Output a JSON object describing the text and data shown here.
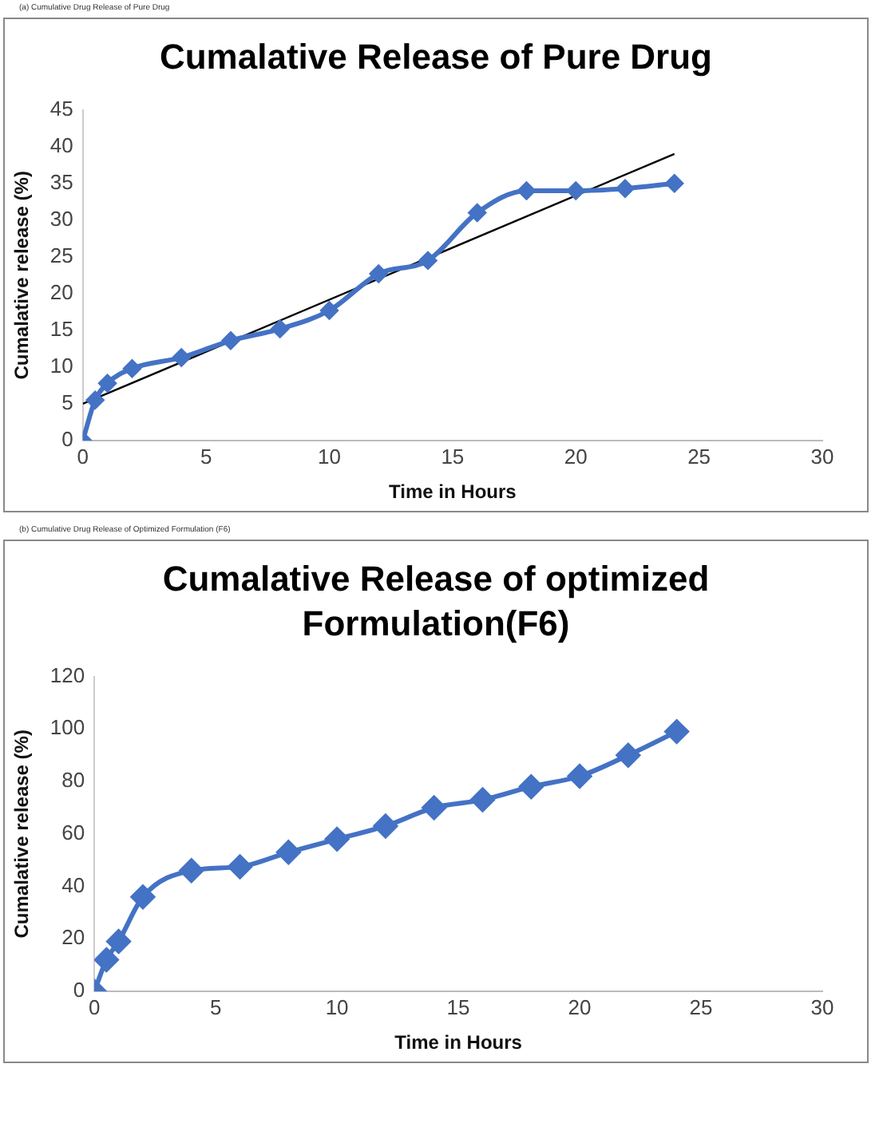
{
  "chart_data": [
    {
      "type": "line",
      "title": "Cumalative Release of Pure Drug",
      "annotations": [
        "(a) Cumulative Drug Release of Pure Drug"
      ],
      "xlabel": "Time in Hours",
      "ylabel": "Cumalative release (%)",
      "x": [
        0,
        0.5,
        1,
        2,
        4,
        6,
        8,
        10,
        12,
        14,
        16,
        18,
        20,
        22,
        24
      ],
      "xlim": [
        0,
        30
      ],
      "xticks": [
        0,
        5,
        10,
        15,
        20,
        25,
        30
      ],
      "ylim": [
        0,
        45
      ],
      "yticks": [
        0,
        5,
        10,
        15,
        20,
        25,
        30,
        35,
        40,
        45
      ],
      "grid": false,
      "legend": false,
      "marker": "diamond",
      "series": [
        {
          "color": "#4472c4",
          "values": [
            0,
            5.5,
            7.8,
            9.8,
            11.3,
            13.6,
            15.2,
            17.7,
            22.7,
            24.5,
            31,
            34,
            34,
            34.3,
            35
          ]
        },
        {
          "type": "line",
          "x": [
            0,
            24
          ],
          "color": "#000000",
          "marker": "none",
          "values": [
            5,
            39
          ]
        }
      ]
    },
    {
      "type": "line",
      "title": "Cumalative Release of optimized Formulation(F6)",
      "annotations": [
        "(b) Cumulative Drug Release of Optimized Formulation (F6)"
      ],
      "xlabel": "Time in Hours",
      "ylabel": "Cumalative release (%)",
      "x": [
        0,
        0.5,
        1,
        2,
        4,
        6,
        8,
        10,
        12,
        14,
        16,
        18,
        20,
        22,
        24
      ],
      "xlim": [
        0,
        30
      ],
      "xticks": [
        0,
        5,
        10,
        15,
        20,
        25,
        30
      ],
      "ylim": [
        0,
        120
      ],
      "yticks": [
        0,
        20,
        40,
        60,
        80,
        100,
        120
      ],
      "grid": false,
      "legend": false,
      "marker": "diamond",
      "series": [
        {
          "color": "#4472c4",
          "values": [
            0,
            12,
            19,
            36,
            46,
            47.5,
            53,
            58,
            63,
            70,
            73,
            78,
            82,
            90,
            99
          ]
        }
      ]
    }
  ]
}
